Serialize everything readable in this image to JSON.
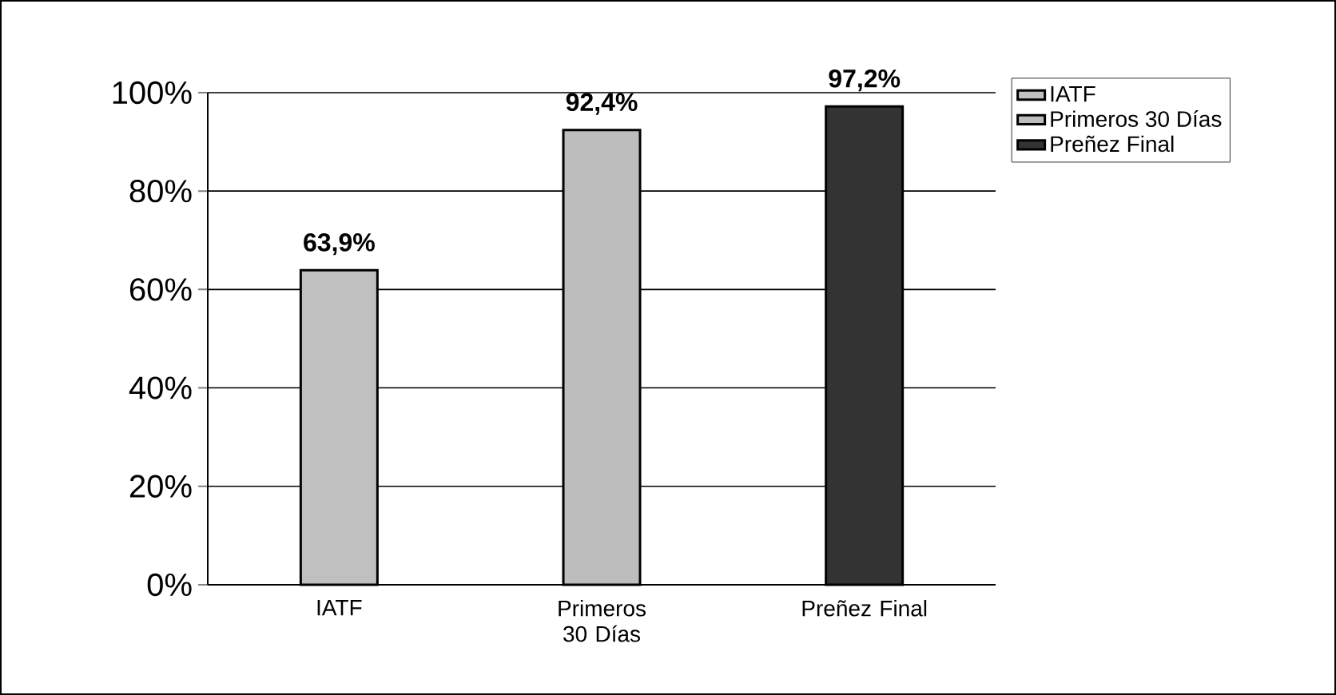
{
  "chart_data": {
    "type": "bar",
    "categories": [
      "IATF",
      "Primeros 30 Días",
      "Preñez Final"
    ],
    "series": [
      {
        "name": "IATF",
        "color": "#c0c0c0",
        "values": [
          63.9,
          null,
          null
        ],
        "value_labels": [
          "63,9%",
          null,
          null
        ]
      },
      {
        "name": "Primeros 30 Días",
        "color": "#bdbdbd",
        "values": [
          null,
          92.4,
          null
        ],
        "value_labels": [
          null,
          "92,4%",
          null
        ]
      },
      {
        "name": "Preñez Final",
        "color": "#333333",
        "values": [
          null,
          null,
          97.2
        ],
        "value_labels": [
          null,
          null,
          "97,2%"
        ]
      }
    ],
    "ylim": [
      0,
      100
    ],
    "yticks": [
      {
        "value": 0,
        "label": "0%"
      },
      {
        "value": 20,
        "label": "20%"
      },
      {
        "value": 40,
        "label": "40%"
      },
      {
        "value": 60,
        "label": "60%"
      },
      {
        "value": 80,
        "label": "80%"
      },
      {
        "value": 100,
        "label": "100%"
      }
    ],
    "grid": "y",
    "legend": "top right"
  }
}
